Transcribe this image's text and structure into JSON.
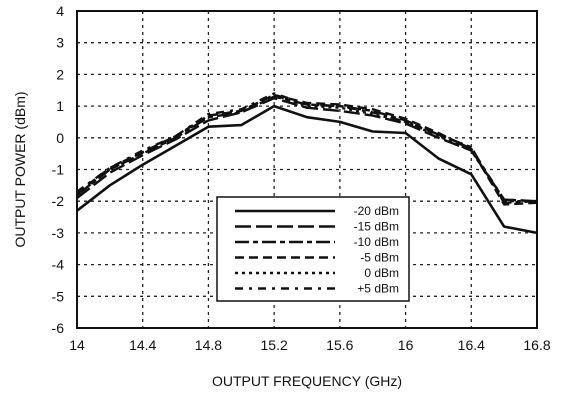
{
  "chart_data": {
    "type": "line",
    "title": "",
    "xlabel": "OUTPUT FREQUENCY (GHz)",
    "ylabel": "OUTPUT POWER (dBm)",
    "xlim": [
      14,
      16.8
    ],
    "ylim": [
      -6,
      4
    ],
    "xticks": [
      "14",
      "14.4",
      "14.8",
      "15.2",
      "15.6",
      "16",
      "16.4",
      "16.8"
    ],
    "yticks": [
      "-6",
      "-5",
      "-4",
      "-3",
      "-2",
      "-1",
      "0",
      "1",
      "2",
      "3",
      "4"
    ],
    "grid": true,
    "legend_position": "bottom-center",
    "series": [
      {
        "name": "-20 dBm",
        "x": [
          14.0,
          14.2,
          14.4,
          14.6,
          14.8,
          15.0,
          15.2,
          15.4,
          15.6,
          15.8,
          16.0,
          16.2,
          16.4,
          16.6,
          16.8
        ],
        "y": [
          -2.3,
          -1.5,
          -0.85,
          -0.25,
          0.35,
          0.4,
          1.0,
          0.65,
          0.5,
          0.2,
          0.15,
          -0.65,
          -1.15,
          -2.8,
          -3.0
        ]
      },
      {
        "name": "-15 dBm",
        "x": [
          14.0,
          14.2,
          14.4,
          14.6,
          14.8,
          15.0,
          15.2,
          15.4,
          15.6,
          15.8,
          16.0,
          16.2,
          16.4,
          16.6,
          16.8
        ],
        "y": [
          -1.9,
          -1.1,
          -0.55,
          -0.05,
          0.55,
          0.8,
          1.25,
          0.95,
          0.85,
          0.7,
          0.45,
          0.0,
          -0.4,
          -1.95,
          -2.0
        ]
      },
      {
        "name": "-10 dBm",
        "x": [
          14.0,
          14.2,
          14.4,
          14.6,
          14.8,
          15.0,
          15.2,
          15.4,
          15.6,
          15.8,
          16.0,
          16.2,
          16.4,
          16.6,
          16.8
        ],
        "y": [
          -1.8,
          -1.0,
          -0.5,
          0.0,
          0.65,
          0.8,
          1.3,
          1.05,
          1.0,
          0.85,
          0.55,
          0.1,
          -0.3,
          -2.05,
          -2.0
        ]
      },
      {
        "name": "-5 dBm",
        "x": [
          14.0,
          14.2,
          14.4,
          14.6,
          14.8,
          15.0,
          15.2,
          15.4,
          15.6,
          15.8,
          16.0,
          16.2,
          16.4,
          16.6,
          16.8
        ],
        "y": [
          -1.75,
          -0.95,
          -0.45,
          0.05,
          0.7,
          0.85,
          1.35,
          1.1,
          1.05,
          0.9,
          0.6,
          0.15,
          -0.35,
          -2.1,
          -2.05
        ]
      },
      {
        "name": "0 dBm",
        "x": [
          14.0,
          14.2,
          14.4,
          14.6,
          14.8,
          15.0,
          15.2,
          15.4,
          15.6,
          15.8,
          16.0,
          16.2,
          16.4,
          16.6,
          16.8
        ],
        "y": [
          -1.8,
          -1.0,
          -0.45,
          0.0,
          0.7,
          0.85,
          1.35,
          1.0,
          0.95,
          0.75,
          0.5,
          0.05,
          -0.4,
          -2.0,
          -2.0
        ]
      },
      {
        "name": "+5 dBm",
        "x": [
          14.0,
          14.2,
          14.4,
          14.6,
          14.8,
          15.0,
          15.2,
          15.4,
          15.6,
          15.8,
          16.0,
          16.2,
          16.4,
          16.6,
          16.8
        ],
        "y": [
          -1.7,
          -0.95,
          -0.4,
          0.05,
          0.75,
          0.9,
          1.4,
          1.05,
          1.0,
          0.8,
          0.5,
          0.1,
          -0.35,
          -1.95,
          -2.0
        ]
      }
    ]
  },
  "styles": {
    "line_color": "#111111",
    "dash_patterns": [
      "none",
      "16 5",
      "14 4 5 4",
      "9 5",
      "3 4",
      "8 6 3 6"
    ]
  }
}
